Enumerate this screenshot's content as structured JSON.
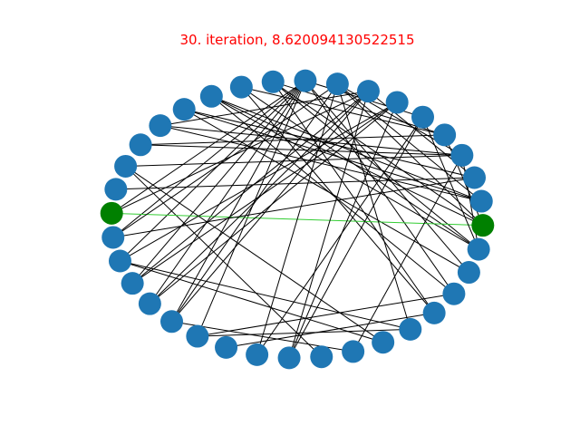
{
  "title": "30. iteration, 8.620094130522515",
  "colors": {
    "title": "#ff0000",
    "node_default": "#1f77b4",
    "node_highlight": "#008000",
    "edge_default": "#000000",
    "edge_highlight": "#32cd32",
    "background": "#ffffff"
  },
  "graph": {
    "node_count": 36,
    "highlighted_nodes": [
      9,
      27
    ],
    "highlighted_edges": [
      [
        9,
        27
      ]
    ],
    "edges": [
      [
        0,
        9
      ],
      [
        0,
        10
      ],
      [
        0,
        11
      ],
      [
        0,
        12
      ],
      [
        0,
        13
      ],
      [
        0,
        14
      ],
      [
        0,
        15
      ],
      [
        0,
        24
      ],
      [
        0,
        25
      ],
      [
        0,
        32
      ],
      [
        1,
        27
      ],
      [
        1,
        26
      ],
      [
        1,
        23
      ],
      [
        1,
        31
      ],
      [
        2,
        26
      ],
      [
        2,
        23
      ],
      [
        2,
        31
      ],
      [
        3,
        28
      ],
      [
        3,
        27
      ],
      [
        3,
        26
      ],
      [
        3,
        24
      ],
      [
        4,
        29
      ],
      [
        4,
        28
      ],
      [
        4,
        25
      ],
      [
        5,
        28
      ],
      [
        5,
        30
      ],
      [
        5,
        34
      ],
      [
        6,
        31
      ],
      [
        6,
        30
      ],
      [
        7,
        30
      ],
      [
        7,
        21
      ],
      [
        7,
        19
      ],
      [
        8,
        29
      ],
      [
        9,
        34
      ],
      [
        9,
        27
      ],
      [
        10,
        35
      ],
      [
        10,
        29
      ],
      [
        11,
        33
      ],
      [
        11,
        22
      ],
      [
        11,
        21
      ],
      [
        12,
        34
      ],
      [
        12,
        33
      ],
      [
        13,
        33
      ],
      [
        13,
        34
      ],
      [
        14,
        34
      ],
      [
        14,
        35
      ],
      [
        14,
        20
      ],
      [
        15,
        22
      ],
      [
        15,
        24
      ],
      [
        16,
        23
      ],
      [
        17,
        32
      ],
      [
        17,
        35
      ],
      [
        18,
        33
      ],
      [
        18,
        34
      ],
      [
        18,
        32
      ],
      [
        20,
        30
      ],
      [
        22,
        35
      ],
      [
        26,
        30
      ],
      [
        26,
        32
      ],
      [
        27,
        31
      ],
      [
        27,
        35
      ],
      [
        28,
        35
      ],
      [
        29,
        34
      ],
      [
        30,
        35
      ]
    ]
  }
}
